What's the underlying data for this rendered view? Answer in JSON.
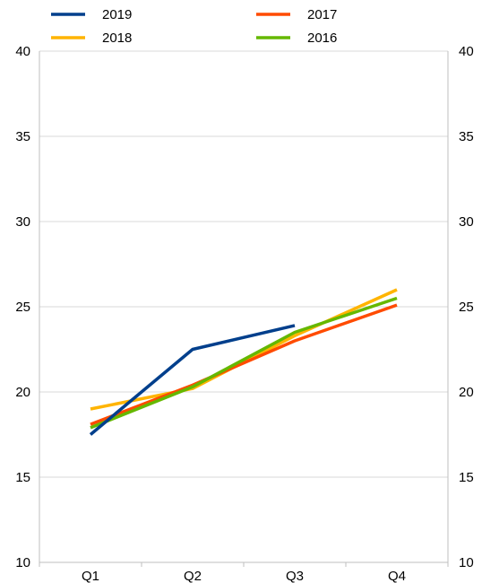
{
  "chart_data": {
    "type": "line",
    "categories": [
      "Q1",
      "Q2",
      "Q3",
      "Q4"
    ],
    "ylim": [
      10,
      40
    ],
    "yticks": [
      10,
      15,
      20,
      25,
      30,
      35,
      40
    ],
    "y_axis_right": true,
    "grid": true,
    "legend_placement": "top",
    "series": [
      {
        "name": "2019",
        "color": "#003f8c",
        "values": [
          17.5,
          22.5,
          23.9,
          null
        ]
      },
      {
        "name": "2017",
        "color": "#ff4b00",
        "values": [
          18.1,
          20.4,
          23.0,
          25.1
        ]
      },
      {
        "name": "2018",
        "color": "#ffb400",
        "values": [
          19.0,
          20.2,
          23.3,
          26.0
        ]
      },
      {
        "name": "2016",
        "color": "#65b800",
        "values": [
          17.9,
          20.3,
          23.5,
          25.5
        ]
      }
    ]
  }
}
